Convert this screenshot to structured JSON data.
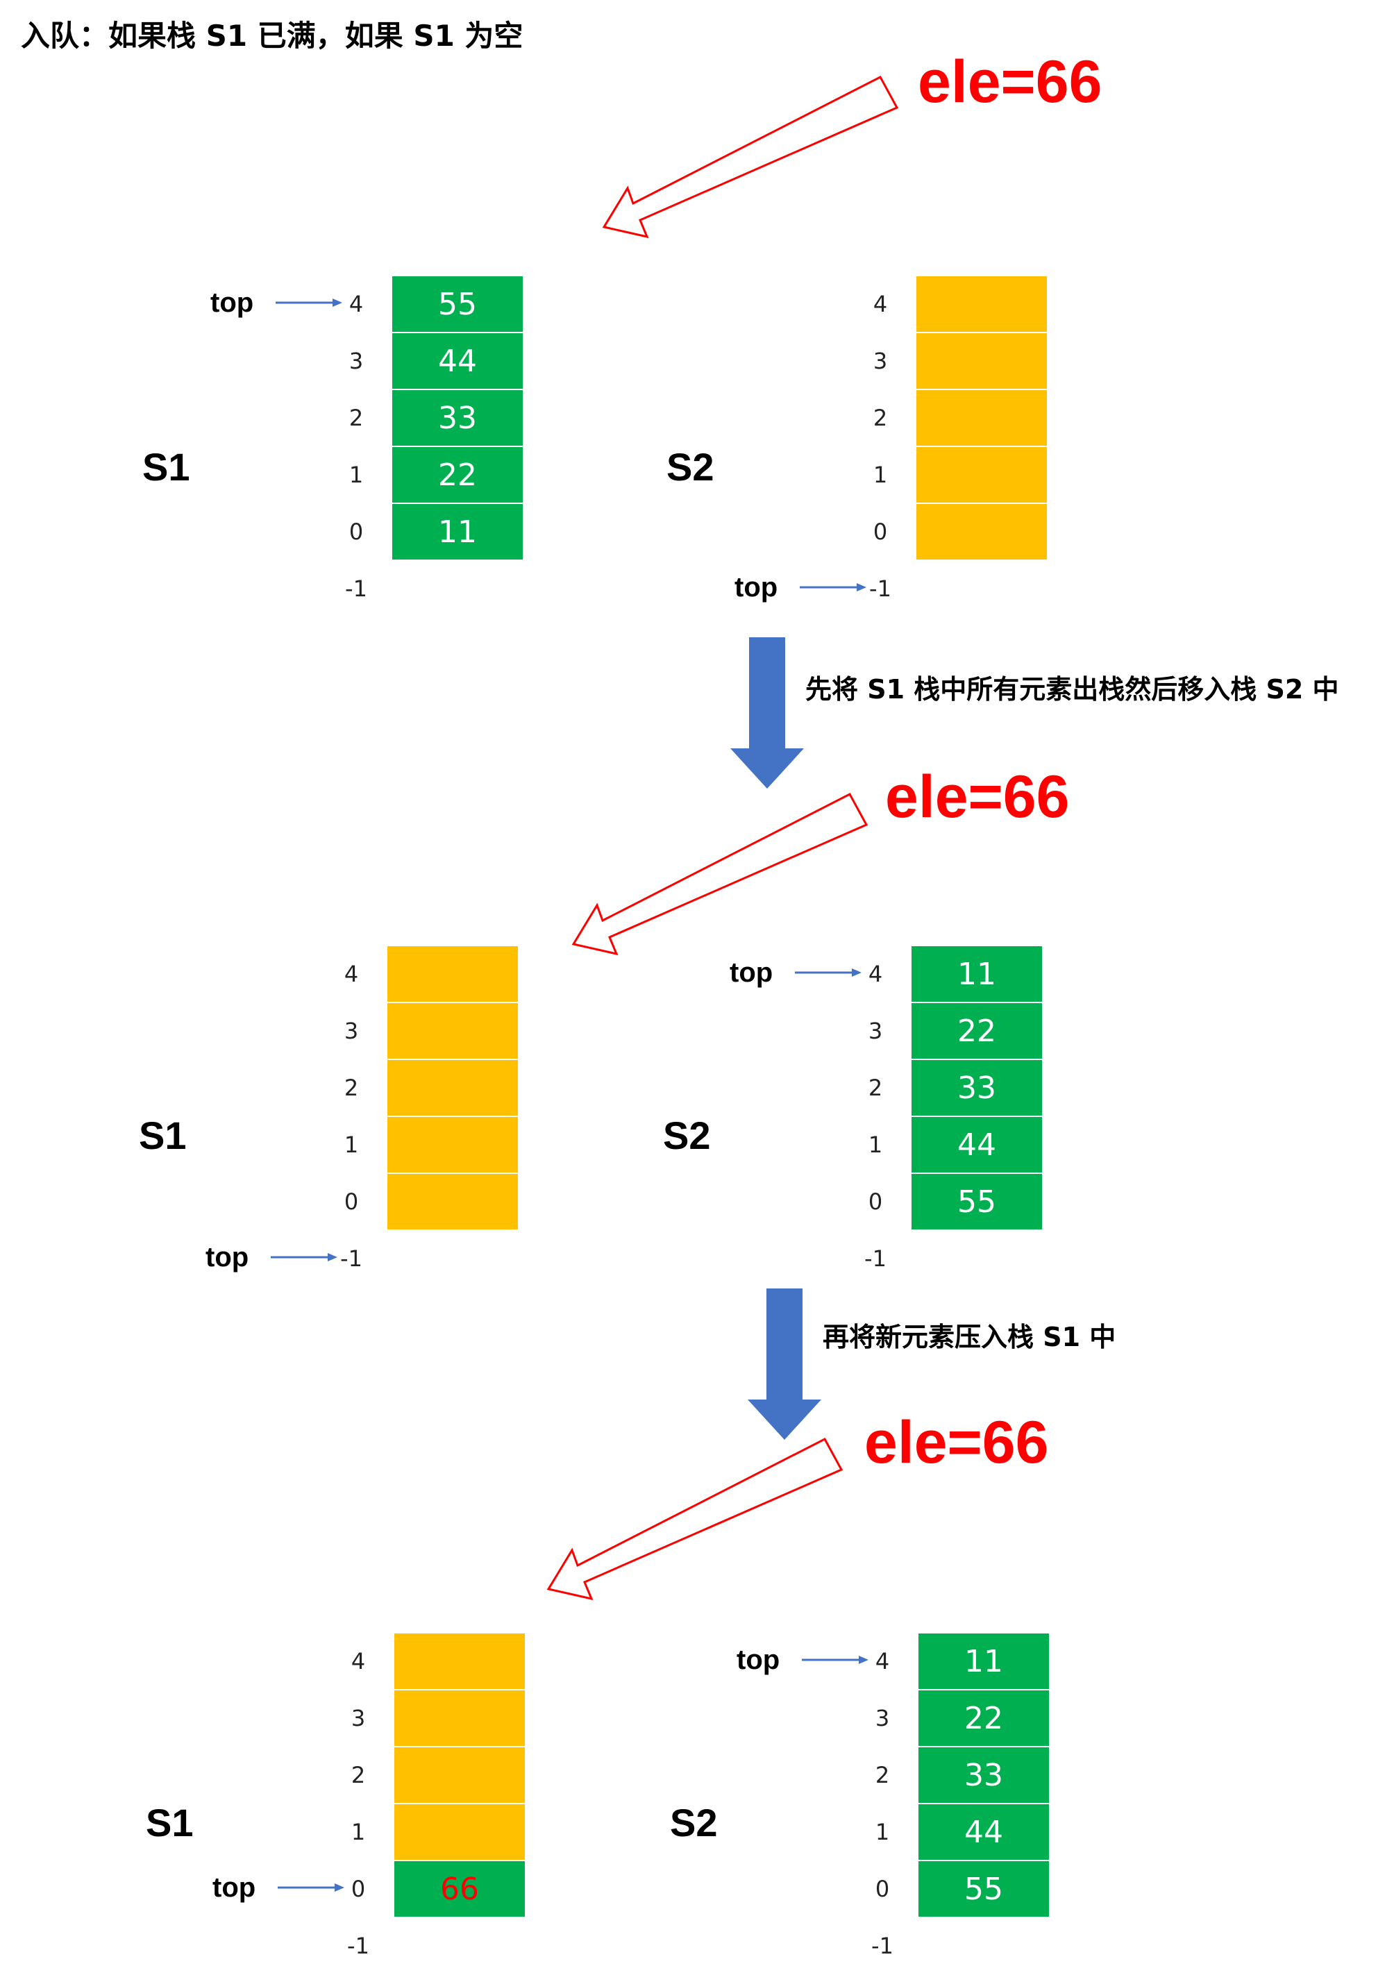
{
  "title": "入队：如果栈 S1 已满，如果 S1 为空",
  "colors": {
    "filled": "#00b050",
    "empty": "#ffc000",
    "ele": "#ff0000",
    "arrow": "#4472c4",
    "new_value": "#ff0000"
  },
  "element_label": "ele=66",
  "index_labels": [
    "4",
    "3",
    "2",
    "1",
    "0",
    "-1"
  ],
  "pointer_label": "top",
  "captions": {
    "step1": "先将 S1 栈中所有元素出栈然后移入栈 S2 中",
    "step2": "再将新元素压入栈 S1 中"
  },
  "phases": [
    {
      "s1": {
        "name": "S1",
        "values": [
          "55",
          "44",
          "33",
          "22",
          "11"
        ],
        "top": "4"
      },
      "s2": {
        "name": "S2",
        "values": [
          "",
          "",
          "",
          "",
          ""
        ],
        "top": "-1"
      }
    },
    {
      "s1": {
        "name": "S1",
        "values": [
          "",
          "",
          "",
          "",
          ""
        ],
        "top": "-1"
      },
      "s2": {
        "name": "S2",
        "values": [
          "11",
          "22",
          "33",
          "44",
          "55"
        ],
        "top": "4"
      }
    },
    {
      "s1": {
        "name": "S1",
        "values": [
          "",
          "",
          "",
          "",
          "66"
        ],
        "top": "0"
      },
      "s2": {
        "name": "S2",
        "values": [
          "11",
          "22",
          "33",
          "44",
          "55"
        ],
        "top": "4"
      }
    }
  ]
}
